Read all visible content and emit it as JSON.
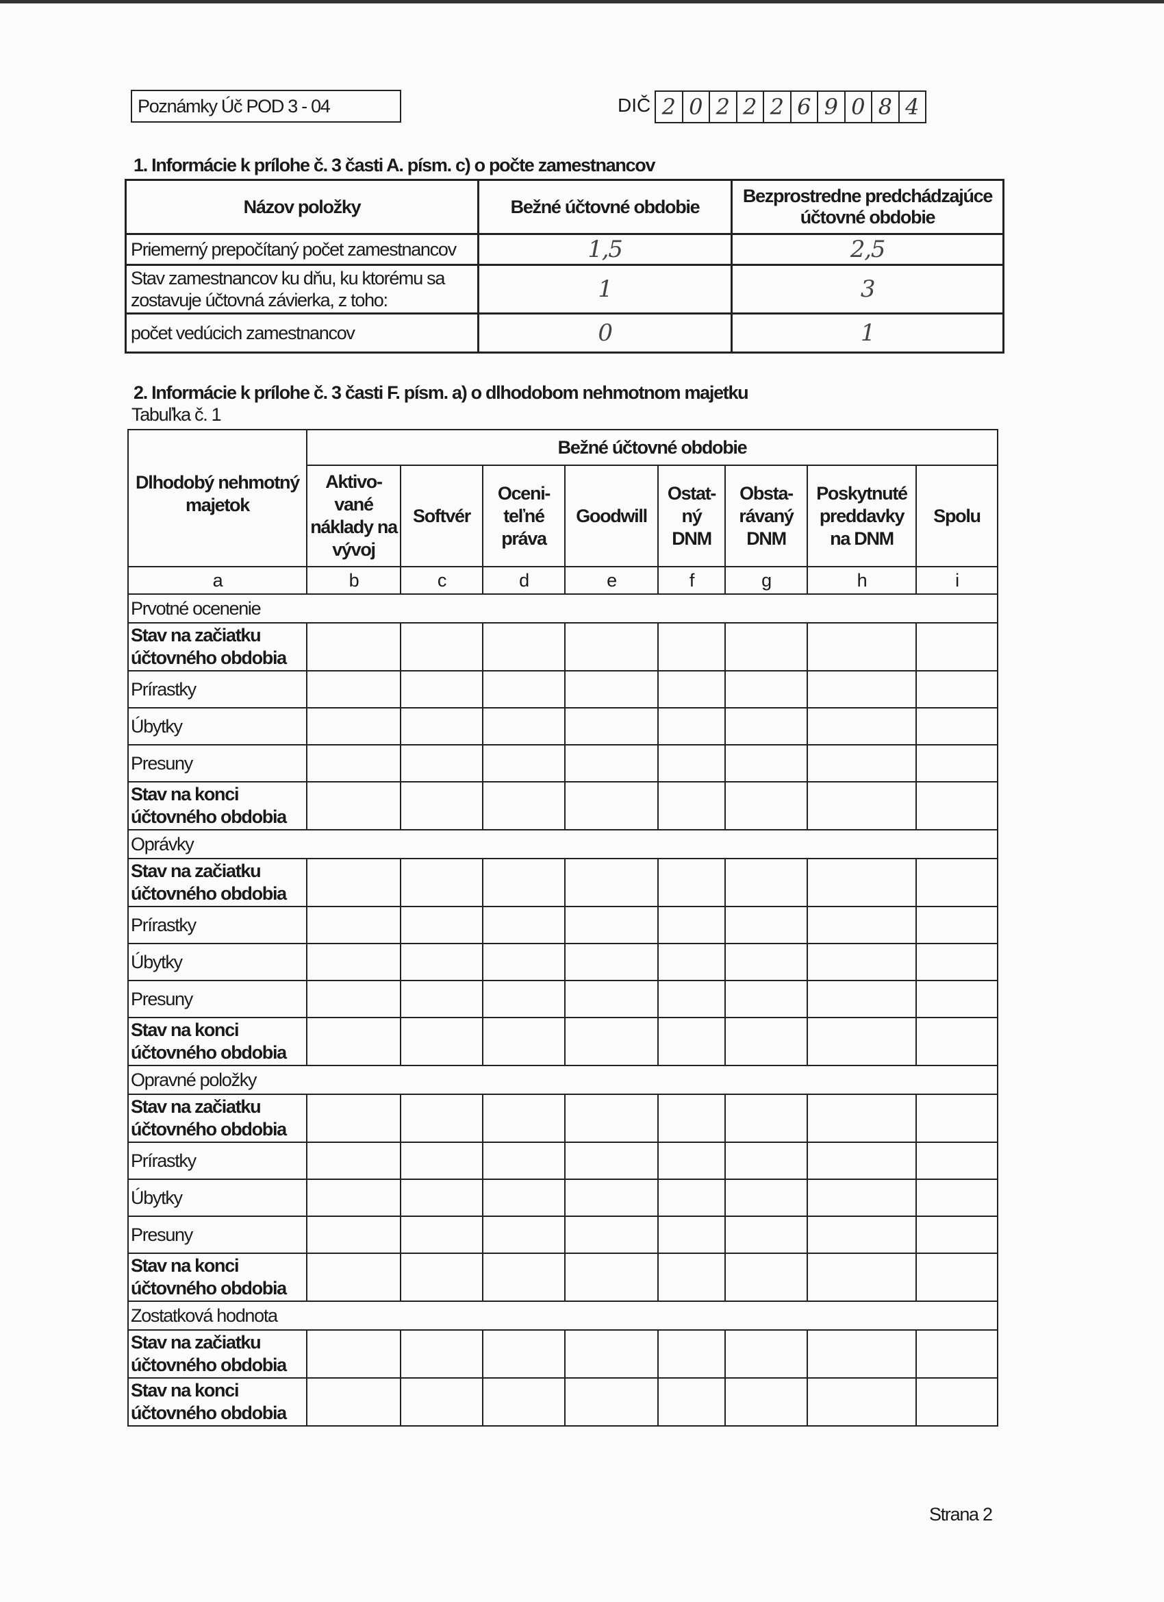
{
  "header": {
    "form_id": "Poznámky Úč POD 3 - 04",
    "dic_label": "DIČ",
    "dic_digits": [
      "2",
      "0",
      "2",
      "2",
      "2",
      "6",
      "9",
      "0",
      "8",
      "4"
    ]
  },
  "section1": {
    "title": "1.   Informácie k prílohe č. 3 časti A. písm. c) o počte zamestnancov",
    "columns": [
      "Názov položky",
      "Bežné účtovné obdobie",
      "Bezprostredne predchádzajúce účtovné obdobie"
    ],
    "rows": [
      {
        "label": "Priemerný prepočítaný počet zamestnancov",
        "current": "1,5",
        "previous": "2,5"
      },
      {
        "label": "Stav zamestnancov ku dňu, ku ktorému sa zostavuje účtovná závierka, z toho:",
        "current": "1",
        "previous": "3"
      },
      {
        "label": "počet vedúcich zamestnancov",
        "current": "0",
        "previous": "1"
      }
    ]
  },
  "section2": {
    "title": "2.   Informácie k prílohe č. 3 časti F. písm. a) o dlhodobom nehmotnom majetku",
    "table_label": "Tabuľka č. 1",
    "row_header": "Dlhodobý nehmotný majetok",
    "group_header": "Bežné účtovné obdobie",
    "columns": [
      "Aktivo-vané náklady na vývoj",
      "Softvér",
      "Oceni-teľné práva",
      "Goodwill",
      "Ostat-ný DNM",
      "Obsta-rávaný DNM",
      "Poskytnuté preddavky na DNM",
      "Spolu"
    ],
    "letters": [
      "a",
      "b",
      "c",
      "d",
      "e",
      "f",
      "g",
      "h",
      "i"
    ],
    "sections": [
      {
        "title": "Prvotné ocenenie",
        "rows": [
          "Stav na začiatku účtovného obdobia",
          "Prírastky",
          "Úbytky",
          "Presuny",
          "Stav na konci účtovného obdobia"
        ]
      },
      {
        "title": "Oprávky",
        "rows": [
          "Stav na začiatku účtovného obdobia",
          "Prírastky",
          "Úbytky",
          "Presuny",
          "Stav na konci účtovného obdobia"
        ]
      },
      {
        "title": "Opravné položky",
        "rows": [
          "Stav na začiatku účtovného obdobia",
          "Prírastky",
          "Úbytky",
          "Presuny",
          "Stav na konci účtovného obdobia"
        ]
      },
      {
        "title": "Zostatková hodnota",
        "rows": [
          "Stav na začiatku účtovného obdobia",
          "Stav na konci účtovného obdobia"
        ]
      }
    ]
  },
  "footer": {
    "page": "Strana 2"
  }
}
